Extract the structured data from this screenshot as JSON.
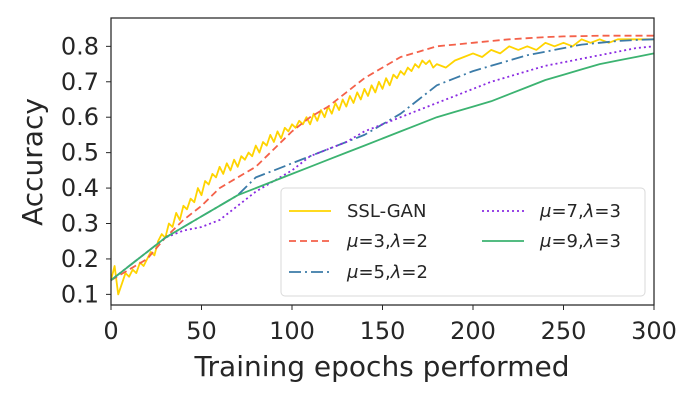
{
  "chart_data": {
    "type": "line",
    "title": "",
    "xlabel": "Training epochs performed",
    "ylabel": "Accuracy",
    "xlim": [
      0,
      300
    ],
    "ylim": [
      0.07,
      0.88
    ],
    "xticks": [
      0,
      50,
      100,
      150,
      200,
      250,
      300
    ],
    "yticks": [
      0.1,
      0.2,
      0.3,
      0.4,
      0.5,
      0.6,
      0.7,
      0.8
    ],
    "grid": false,
    "legend_position": "lower-right",
    "legend_columns": 2,
    "series": [
      {
        "name": "SSL-GAN",
        "label_parts": [
          {
            "t": "SSL-GAN",
            "italic": false
          }
        ],
        "color": "#FFD400",
        "dash": "solid",
        "x": [
          0,
          2,
          4,
          6,
          8,
          10,
          12,
          14,
          16,
          18,
          20,
          22,
          24,
          26,
          28,
          30,
          32,
          34,
          36,
          38,
          40,
          42,
          44,
          46,
          48,
          50,
          52,
          54,
          56,
          58,
          60,
          62,
          64,
          66,
          68,
          70,
          72,
          74,
          76,
          78,
          80,
          82,
          84,
          86,
          88,
          90,
          92,
          94,
          96,
          98,
          100,
          102,
          104,
          106,
          108,
          110,
          112,
          114,
          116,
          118,
          120,
          122,
          124,
          126,
          128,
          130,
          132,
          134,
          136,
          138,
          140,
          142,
          144,
          146,
          148,
          150,
          152,
          154,
          156,
          158,
          160,
          162,
          164,
          166,
          168,
          170,
          172,
          174,
          176,
          178,
          180,
          185,
          190,
          195,
          200,
          205,
          210,
          215,
          220,
          225,
          230,
          235,
          240,
          245,
          250,
          255,
          260,
          265,
          270,
          275,
          280,
          285,
          290,
          295,
          300
        ],
        "y": [
          0.14,
          0.18,
          0.1,
          0.13,
          0.16,
          0.15,
          0.17,
          0.16,
          0.19,
          0.18,
          0.2,
          0.22,
          0.21,
          0.25,
          0.27,
          0.26,
          0.3,
          0.29,
          0.33,
          0.31,
          0.35,
          0.34,
          0.37,
          0.36,
          0.4,
          0.38,
          0.42,
          0.41,
          0.44,
          0.43,
          0.46,
          0.44,
          0.47,
          0.45,
          0.48,
          0.46,
          0.49,
          0.48,
          0.5,
          0.49,
          0.52,
          0.5,
          0.53,
          0.52,
          0.55,
          0.53,
          0.56,
          0.54,
          0.57,
          0.56,
          0.58,
          0.57,
          0.59,
          0.58,
          0.6,
          0.58,
          0.61,
          0.59,
          0.62,
          0.6,
          0.63,
          0.61,
          0.64,
          0.62,
          0.65,
          0.63,
          0.66,
          0.64,
          0.67,
          0.65,
          0.68,
          0.66,
          0.69,
          0.67,
          0.7,
          0.68,
          0.71,
          0.69,
          0.72,
          0.71,
          0.73,
          0.72,
          0.74,
          0.73,
          0.75,
          0.74,
          0.76,
          0.75,
          0.76,
          0.74,
          0.75,
          0.74,
          0.76,
          0.77,
          0.78,
          0.77,
          0.79,
          0.78,
          0.8,
          0.79,
          0.8,
          0.79,
          0.81,
          0.8,
          0.81,
          0.8,
          0.82,
          0.81,
          0.82,
          0.81,
          0.82,
          0.82,
          0.82,
          0.82,
          0.82
        ]
      },
      {
        "name": "μ=3,λ=2",
        "label_parts": [
          {
            "t": "μ",
            "italic": true
          },
          {
            "t": "=3,",
            "italic": false
          },
          {
            "t": "λ",
            "italic": true
          },
          {
            "t": "=2",
            "italic": false
          }
        ],
        "color": "#F4614A",
        "dash": "7,4",
        "x": [
          0,
          10,
          20,
          30,
          40,
          50,
          60,
          70,
          80,
          90,
          100,
          110,
          120,
          130,
          140,
          150,
          160,
          170,
          180,
          190,
          200,
          210,
          220,
          230,
          240,
          250,
          260,
          270,
          280,
          290,
          300
        ],
        "y": [
          0.14,
          0.17,
          0.2,
          0.26,
          0.31,
          0.35,
          0.4,
          0.43,
          0.46,
          0.51,
          0.56,
          0.6,
          0.63,
          0.67,
          0.71,
          0.74,
          0.77,
          0.785,
          0.8,
          0.805,
          0.81,
          0.815,
          0.82,
          0.823,
          0.826,
          0.828,
          0.829,
          0.83,
          0.83,
          0.83,
          0.83
        ]
      },
      {
        "name": "μ=5,λ=2",
        "label_parts": [
          {
            "t": "μ",
            "italic": true
          },
          {
            "t": "=5,",
            "italic": false
          },
          {
            "t": "λ",
            "italic": true
          },
          {
            "t": "=2",
            "italic": false
          }
        ],
        "color": "#3B7BA8",
        "dash": "12,4,2,4",
        "x": [
          0,
          10,
          20,
          30,
          40,
          50,
          60,
          70,
          80,
          90,
          100,
          110,
          120,
          130,
          140,
          150,
          160,
          170,
          180,
          190,
          200,
          210,
          220,
          230,
          240,
          250,
          260,
          270,
          280,
          290,
          300
        ],
        "y": [
          0.14,
          0.18,
          0.22,
          0.26,
          0.29,
          0.32,
          0.35,
          0.38,
          0.43,
          0.45,
          0.47,
          0.49,
          0.51,
          0.53,
          0.55,
          0.58,
          0.61,
          0.65,
          0.69,
          0.71,
          0.73,
          0.745,
          0.76,
          0.775,
          0.785,
          0.795,
          0.805,
          0.81,
          0.815,
          0.818,
          0.82
        ]
      },
      {
        "name": "μ=7,λ=3",
        "label_parts": [
          {
            "t": "μ",
            "italic": true
          },
          {
            "t": "=7,",
            "italic": false
          },
          {
            "t": "λ",
            "italic": true
          },
          {
            "t": "=3",
            "italic": false
          }
        ],
        "color": "#8A2BE2",
        "dash": "2,3",
        "x": [
          0,
          10,
          20,
          30,
          40,
          50,
          60,
          70,
          80,
          90,
          100,
          110,
          120,
          130,
          140,
          150,
          160,
          170,
          180,
          190,
          200,
          210,
          220,
          230,
          240,
          250,
          260,
          270,
          280,
          290,
          300
        ],
        "y": [
          0.14,
          0.18,
          0.22,
          0.26,
          0.28,
          0.29,
          0.31,
          0.35,
          0.39,
          0.42,
          0.45,
          0.49,
          0.51,
          0.53,
          0.56,
          0.58,
          0.6,
          0.62,
          0.64,
          0.66,
          0.68,
          0.7,
          0.715,
          0.73,
          0.745,
          0.755,
          0.765,
          0.775,
          0.785,
          0.795,
          0.8
        ]
      },
      {
        "name": "μ=9,λ=3",
        "label_parts": [
          {
            "t": "μ",
            "italic": true
          },
          {
            "t": "=9,",
            "italic": false
          },
          {
            "t": "λ",
            "italic": true
          },
          {
            "t": "=3",
            "italic": false
          }
        ],
        "color": "#3CB371",
        "dash": "solid",
        "x": [
          0,
          10,
          20,
          30,
          40,
          50,
          60,
          70,
          80,
          90,
          100,
          110,
          120,
          130,
          140,
          150,
          160,
          170,
          180,
          190,
          200,
          210,
          220,
          230,
          240,
          250,
          260,
          270,
          280,
          290,
          300
        ],
        "y": [
          0.14,
          0.18,
          0.22,
          0.26,
          0.29,
          0.32,
          0.35,
          0.38,
          0.4,
          0.42,
          0.44,
          0.46,
          0.48,
          0.5,
          0.52,
          0.54,
          0.56,
          0.58,
          0.6,
          0.615,
          0.63,
          0.645,
          0.665,
          0.685,
          0.705,
          0.72,
          0.735,
          0.75,
          0.76,
          0.77,
          0.78
        ]
      }
    ]
  }
}
